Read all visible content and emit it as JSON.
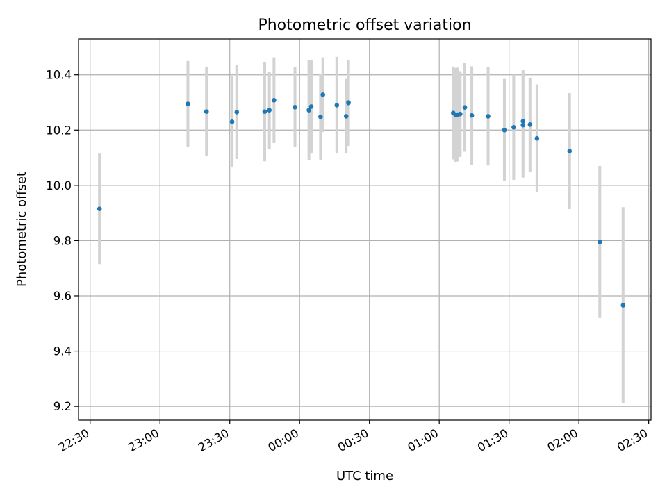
{
  "chart_data": {
    "type": "scatter",
    "title": "Photometric offset variation",
    "xlabel": "UTC time",
    "ylabel": "Photometric offset",
    "x_unit": "HH:MM",
    "xlim": [
      "22:25",
      "02:31"
    ],
    "ylim": [
      9.15,
      10.53
    ],
    "x_ticks": [
      "22:30",
      "23:00",
      "23:30",
      "00:00",
      "00:30",
      "01:00",
      "01:30",
      "02:00",
      "02:30"
    ],
    "y_ticks": [
      9.2,
      9.4,
      9.6,
      9.8,
      10.0,
      10.2,
      10.4
    ],
    "y_tick_labels": [
      "9.2",
      "9.4",
      "9.6",
      "9.8",
      "10.0",
      "10.2",
      "10.4"
    ],
    "grid": true,
    "point_color": "#1f77b4",
    "errorbar_color": "#d3d3d3",
    "points": [
      {
        "x": "22:34",
        "y": 9.915,
        "err": 0.2
      },
      {
        "x": "23:12",
        "y": 10.295,
        "err": 0.155
      },
      {
        "x": "23:20",
        "y": 10.267,
        "err": 0.16
      },
      {
        "x": "23:31",
        "y": 10.23,
        "err": 0.165
      },
      {
        "x": "23:33",
        "y": 10.265,
        "err": 0.17
      },
      {
        "x": "23:45",
        "y": 10.267,
        "err": 0.18
      },
      {
        "x": "23:47",
        "y": 10.272,
        "err": 0.14
      },
      {
        "x": "23:49",
        "y": 10.308,
        "err": 0.155
      },
      {
        "x": "23:58",
        "y": 10.283,
        "err": 0.145
      },
      {
        "x": "00:04",
        "y": 10.272,
        "err": 0.18
      },
      {
        "x": "00:05",
        "y": 10.285,
        "err": 0.17
      },
      {
        "x": "00:09",
        "y": 10.248,
        "err": 0.155
      },
      {
        "x": "00:10",
        "y": 10.328,
        "err": 0.135
      },
      {
        "x": "00:16",
        "y": 10.29,
        "err": 0.175
      },
      {
        "x": "00:20",
        "y": 10.25,
        "err": 0.135
      },
      {
        "x": "00:21",
        "y": 10.298,
        "err": 0.155
      },
      {
        "x": "00:21",
        "y": 10.3,
        "err": 0.155
      },
      {
        "x": "01:06",
        "y": 10.262,
        "err": 0.168
      },
      {
        "x": "01:07",
        "y": 10.255,
        "err": 0.17
      },
      {
        "x": "01:08",
        "y": 10.256,
        "err": 0.17
      },
      {
        "x": "01:09",
        "y": 10.258,
        "err": 0.155
      },
      {
        "x": "01:11",
        "y": 10.282,
        "err": 0.16
      },
      {
        "x": "01:14",
        "y": 10.253,
        "err": 0.178
      },
      {
        "x": "01:21",
        "y": 10.25,
        "err": 0.178
      },
      {
        "x": "01:28",
        "y": 10.2,
        "err": 0.185
      },
      {
        "x": "01:32",
        "y": 10.21,
        "err": 0.19
      },
      {
        "x": "01:36",
        "y": 10.232,
        "err": 0.185
      },
      {
        "x": "01:36",
        "y": 10.218,
        "err": 0.19
      },
      {
        "x": "01:39",
        "y": 10.22,
        "err": 0.17
      },
      {
        "x": "01:42",
        "y": 10.17,
        "err": 0.195
      },
      {
        "x": "01:56",
        "y": 10.124,
        "err": 0.21
      },
      {
        "x": "02:09",
        "y": 9.795,
        "err": 0.275
      },
      {
        "x": "02:19",
        "y": 9.566,
        "err": 0.355
      }
    ]
  }
}
